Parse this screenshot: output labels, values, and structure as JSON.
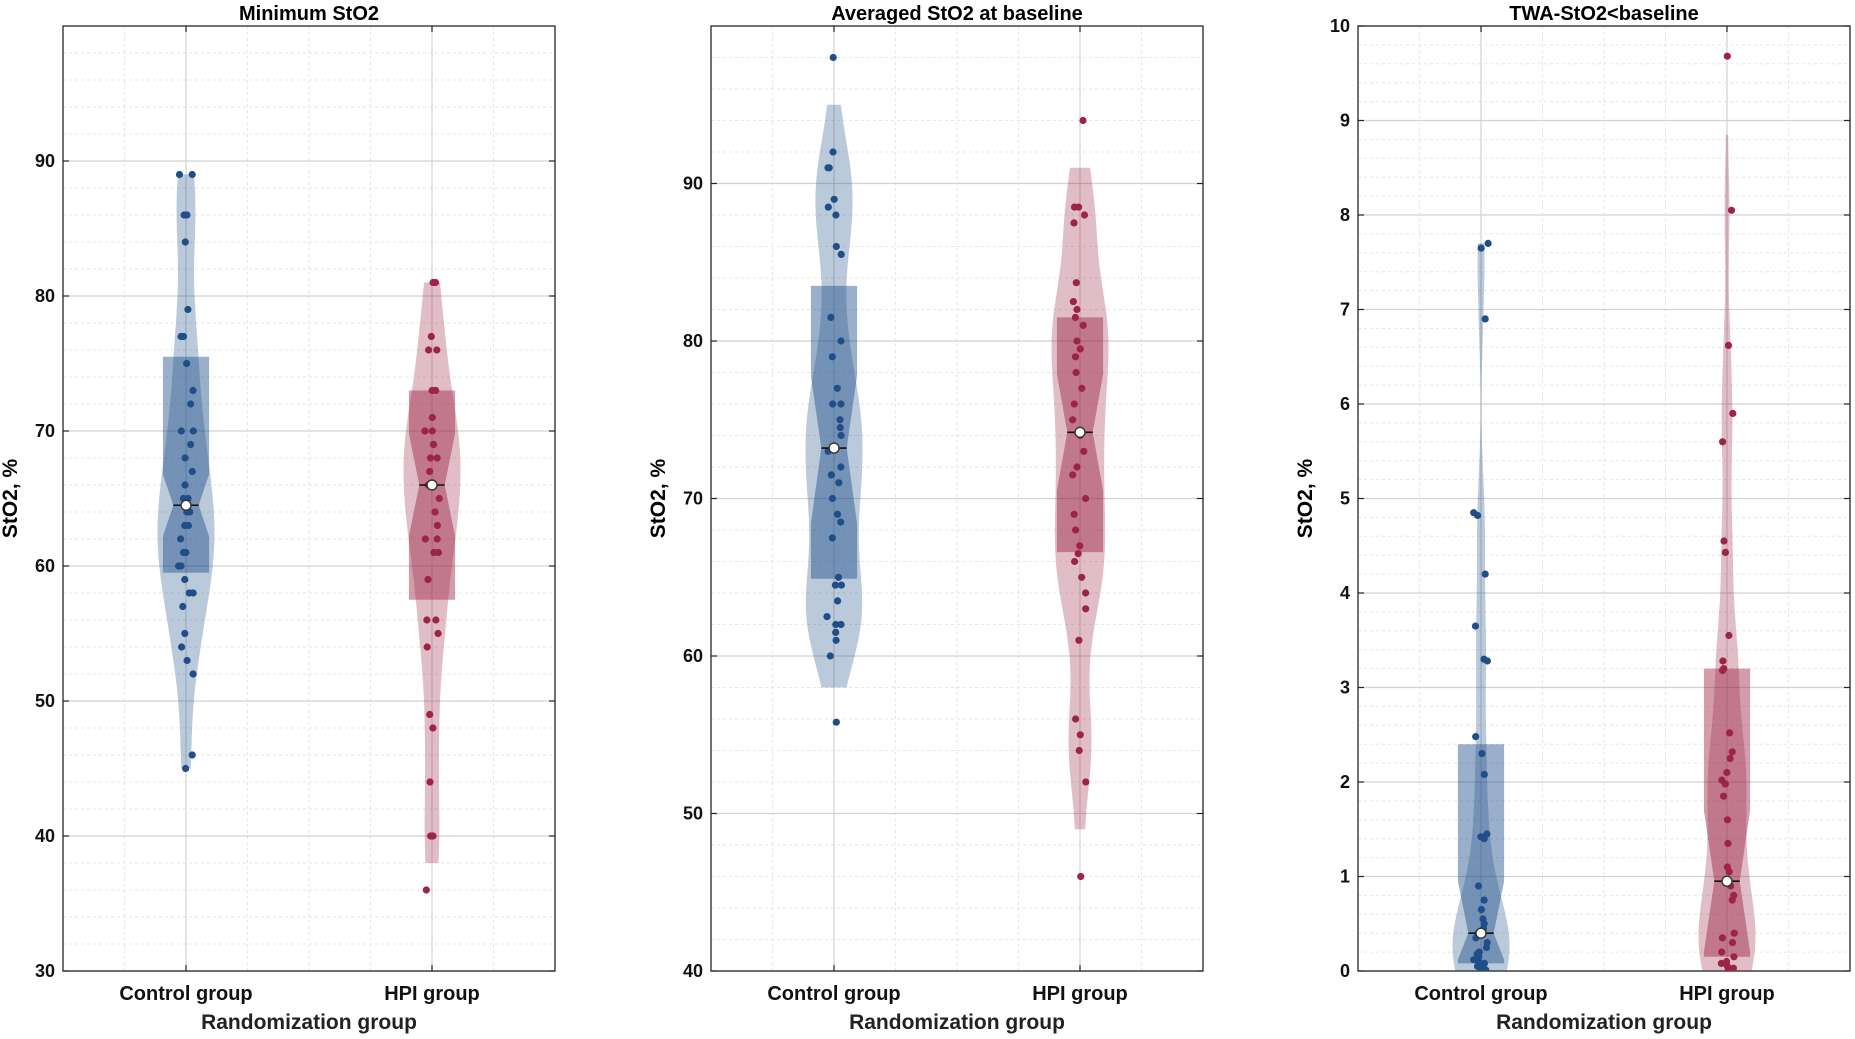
{
  "chart_data": [
    {
      "type": "violin",
      "title": "Minimum StO2",
      "xlabel": "Randomization group",
      "ylabel": "StO2, %",
      "ylim": [
        30,
        100
      ],
      "yticks": [
        30,
        40,
        50,
        60,
        70,
        80,
        90
      ],
      "categories": [
        "Control group",
        "HPI group"
      ],
      "series": [
        {
          "name": "Control group",
          "color": "#1f4e89",
          "median": 64.5,
          "q1": 59.5,
          "q3": 75.5,
          "notch": [
            62.2,
            66.8
          ],
          "whiskers": [
            45,
            89
          ],
          "points": [
            89,
            89,
            86,
            86,
            84,
            79,
            77,
            77,
            75,
            73,
            72,
            70,
            70,
            69,
            68,
            67,
            66,
            65,
            65,
            64,
            64,
            63,
            63,
            62,
            61,
            61,
            60,
            60,
            59,
            58,
            58,
            57,
            55,
            54,
            53,
            52,
            46,
            45
          ]
        },
        {
          "name": "HPI group",
          "color": "#9c2445",
          "median": 66,
          "q1": 57.5,
          "q3": 73,
          "notch": [
            62.2,
            69.8
          ],
          "whiskers": [
            38,
            81
          ],
          "points": [
            81,
            81,
            77,
            76,
            76,
            73,
            73,
            71,
            70,
            70,
            69,
            69,
            68,
            68,
            67,
            66,
            66,
            65,
            64,
            63,
            62,
            62,
            61,
            61,
            59,
            56,
            56,
            55,
            54,
            49,
            48,
            44,
            40,
            40,
            36
          ]
        }
      ]
    },
    {
      "type": "violin",
      "title": "Averaged StO2 at baseline",
      "xlabel": "Randomization group",
      "ylabel": "StO2, %",
      "ylim": [
        40,
        100
      ],
      "yticks": [
        40,
        50,
        60,
        70,
        80,
        90
      ],
      "categories": [
        "Control group",
        "HPI group"
      ],
      "series": [
        {
          "name": "Control group",
          "color": "#1f4e89",
          "median": 73.2,
          "q1": 64.9,
          "q3": 83.5,
          "notch": [
            68.4,
            77.8
          ],
          "whiskers": [
            58,
            95
          ],
          "points": [
            98,
            92,
            91,
            91,
            89,
            88.5,
            88,
            86,
            85.5,
            81.5,
            80,
            79,
            77,
            76,
            76,
            75,
            74.5,
            74,
            73,
            72,
            71.5,
            71,
            70,
            69,
            68.5,
            67.5,
            65,
            64.5,
            64.5,
            63.5,
            62.5,
            62,
            62,
            61.5,
            61,
            60,
            55.8
          ]
        },
        {
          "name": "HPI group",
          "color": "#9c2445",
          "median": 74.2,
          "q1": 66.6,
          "q3": 81.5,
          "notch": [
            70.5,
            77.9
          ],
          "whiskers": [
            49,
            91
          ],
          "points": [
            94,
            88.5,
            88.5,
            88,
            87.5,
            83.7,
            82.5,
            82,
            81.5,
            81,
            80,
            79.5,
            79,
            78,
            77,
            76,
            75,
            74,
            73,
            72,
            71.5,
            70,
            69,
            68,
            67,
            66.5,
            66,
            65,
            64,
            63,
            61,
            56,
            55,
            54,
            52,
            46
          ]
        }
      ]
    },
    {
      "type": "violin",
      "title": "TWA-StO2<baseline",
      "xlabel": "Randomization group",
      "ylabel": "StO2, %",
      "ylim": [
        0,
        10
      ],
      "yticks": [
        0,
        1,
        2,
        3,
        4,
        5,
        6,
        7,
        8,
        9,
        10
      ],
      "categories": [
        "Control group",
        "HPI group"
      ],
      "series": [
        {
          "name": "Control group",
          "color": "#1f4e89",
          "median": 0.4,
          "q1": 0.08,
          "q3": 2.4,
          "notch": [
            0.12,
            0.95
          ],
          "whiskers": [
            0,
            7.7
          ],
          "points": [
            7.7,
            7.65,
            6.9,
            4.85,
            4.82,
            4.2,
            3.65,
            3.3,
            3.28,
            2.48,
            2.3,
            2.08,
            1.45,
            1.42,
            1.4,
            0.9,
            0.75,
            0.65,
            0.55,
            0.5,
            0.45,
            0.4,
            0.35,
            0.3,
            0.25,
            0.2,
            0.18,
            0.15,
            0.12,
            0.1,
            0.08,
            0.05,
            0.04,
            0.03,
            0.02,
            0.01,
            0
          ]
        },
        {
          "name": "HPI group",
          "color": "#9c2445",
          "median": 0.95,
          "q1": 0.15,
          "q3": 3.2,
          "notch": [
            0.2,
            1.7
          ],
          "whiskers": [
            0,
            8.85
          ],
          "points": [
            9.68,
            8.05,
            6.62,
            5.9,
            5.6,
            4.55,
            4.43,
            3.55,
            3.28,
            3.2,
            3.18,
            2.52,
            2.32,
            2.25,
            2.1,
            2.02,
            1.98,
            1.85,
            1.6,
            1.35,
            1.1,
            1.05,
            0.9,
            0.8,
            0.75,
            0.4,
            0.35,
            0.3,
            0.2,
            0.15,
            0.1,
            0.08,
            0.05,
            0.03,
            0.02
          ]
        }
      ]
    }
  ]
}
